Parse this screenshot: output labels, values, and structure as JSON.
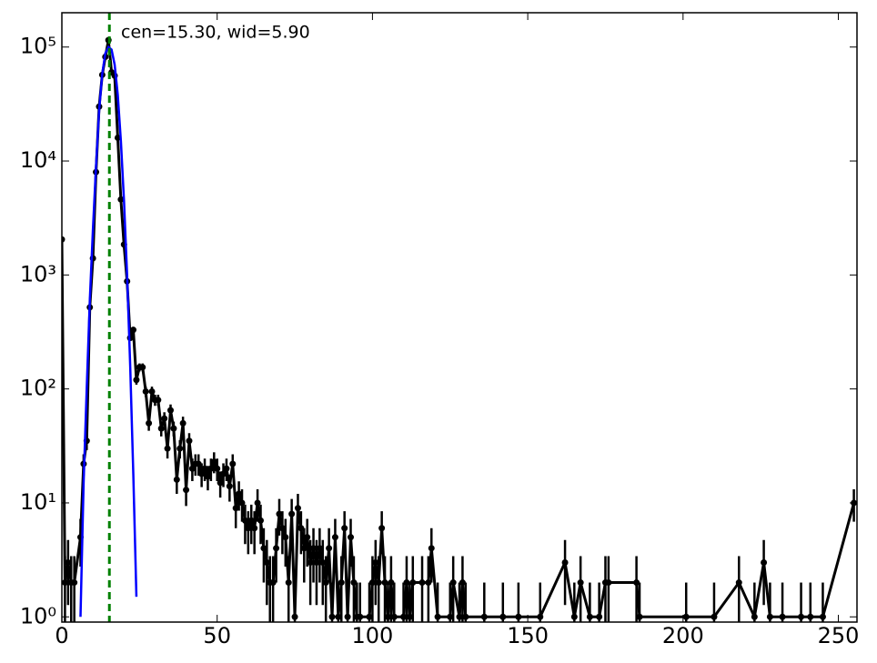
{
  "chart_data": {
    "type": "errorbar_line",
    "annotation": "cen=15.30, wid=5.90",
    "annotation_color": "#008000",
    "vline": 15.3,
    "vline_color": "#008000",
    "xlim": [
      0,
      256
    ],
    "xticks": [
      0,
      50,
      100,
      150,
      200,
      250
    ],
    "ylim": [
      0.9,
      200000
    ],
    "log_y": true,
    "yticks": [
      {
        "value": 1,
        "label": "10⁰"
      },
      {
        "value": 10,
        "label": "10¹"
      },
      {
        "value": 100,
        "label": "10²"
      },
      {
        "value": 1000,
        "label": "10³"
      },
      {
        "value": 10000,
        "label": "10⁴"
      },
      {
        "value": 100000,
        "label": "10⁵"
      }
    ],
    "series": [
      {
        "color": "#000000",
        "x": [
          0,
          1,
          2,
          3,
          4,
          6,
          7,
          8,
          9,
          10,
          11,
          12,
          13,
          14,
          15,
          16,
          17,
          18,
          19,
          20,
          21,
          22,
          23,
          24,
          25,
          26,
          27,
          28,
          29,
          30,
          31,
          32,
          33,
          34,
          35,
          36,
          37,
          38,
          39,
          40,
          41,
          42,
          43,
          44,
          45,
          46,
          47,
          48,
          49,
          50,
          51,
          52,
          53,
          54,
          55,
          56,
          57,
          58,
          59,
          60,
          61,
          62,
          63,
          64,
          65,
          66,
          67,
          68,
          69,
          70,
          71,
          72,
          73,
          74,
          75,
          76,
          77,
          78,
          79,
          80,
          81,
          82,
          83,
          84,
          85,
          86,
          87,
          88,
          89,
          90,
          91,
          92,
          93,
          94,
          95,
          96,
          99,
          100,
          101,
          102,
          103,
          104,
          105,
          106,
          107,
          110,
          111,
          112,
          113,
          116,
          118,
          119,
          121,
          125,
          126,
          128,
          129,
          130,
          136,
          142,
          147,
          154,
          162,
          165,
          167,
          170,
          173,
          175,
          176,
          185,
          186,
          201,
          210,
          218,
          223,
          226,
          228,
          232,
          238,
          241,
          245,
          255
        ],
        "values": [
          2050,
          2,
          3,
          2,
          2,
          5,
          22,
          35,
          520,
          1400,
          8000,
          30000,
          57000,
          82000,
          115000,
          60000,
          56000,
          16000,
          4600,
          1850,
          880,
          280,
          330,
          120,
          155,
          155,
          95,
          50,
          95,
          80,
          80,
          45,
          55,
          30,
          65,
          45,
          16,
          30,
          50,
          13,
          35,
          20,
          22,
          22,
          18,
          20,
          17,
          20,
          23,
          20,
          15,
          18,
          20,
          14,
          22,
          9,
          12,
          10,
          7,
          6,
          7,
          6,
          10,
          7,
          4,
          3,
          2,
          2,
          4,
          8,
          6,
          5,
          2,
          8,
          1,
          9,
          6,
          4,
          5,
          3,
          4,
          3,
          4,
          3,
          2,
          4,
          1,
          5,
          1,
          2,
          6,
          1,
          5,
          2,
          1,
          1,
          1,
          2,
          3,
          2,
          6,
          2,
          1,
          2,
          1,
          1,
          2,
          1,
          2,
          2,
          2,
          4,
          1,
          1,
          2,
          1,
          2,
          1,
          1,
          1,
          1,
          1,
          3,
          1,
          2,
          1,
          1,
          2,
          2,
          2,
          1,
          1,
          1,
          2,
          1,
          3,
          1,
          1,
          1,
          1,
          1,
          10
        ],
        "errors": [
          45.3,
          1.41,
          1.73,
          1.41,
          1.41,
          2.24,
          4.69,
          5.92,
          22.8,
          37.4,
          89.4,
          173,
          239,
          286,
          339,
          245,
          237,
          126,
          67.8,
          43,
          29.7,
          16.7,
          18.2,
          11,
          12.4,
          12.4,
          9.75,
          7.07,
          9.75,
          8.94,
          8.94,
          6.71,
          7.42,
          5.48,
          8.06,
          6.71,
          4,
          5.48,
          7.07,
          3.61,
          5.92,
          4.47,
          4.69,
          4.69,
          4.24,
          4.47,
          4.12,
          4.47,
          4.8,
          4.47,
          3.87,
          4.24,
          4.47,
          3.74,
          4.69,
          3,
          3.46,
          3.16,
          2.65,
          2.45,
          2.65,
          2.45,
          3.16,
          2.65,
          2,
          1.73,
          1.41,
          1.41,
          2,
          2.83,
          2.45,
          2.24,
          1.41,
          2.83,
          1,
          3,
          2.45,
          2,
          2.24,
          1.73,
          2,
          1.73,
          2,
          1.73,
          1.41,
          2,
          1,
          2.24,
          1,
          1.41,
          2.45,
          1,
          2.24,
          1.41,
          1,
          1,
          1,
          1.41,
          1.73,
          1.41,
          2.45,
          1.41,
          1,
          1.41,
          1,
          1,
          1.41,
          1,
          1.41,
          1.41,
          1.41,
          2,
          1,
          1,
          1.41,
          1,
          1.41,
          1,
          1,
          1,
          1,
          1,
          1.73,
          1,
          1.41,
          1,
          1,
          1.41,
          1.41,
          1.41,
          1,
          1,
          1,
          1.41,
          1,
          1.73,
          1,
          1,
          1,
          1,
          1,
          3.16
        ]
      },
      {
        "color": "#0000ff",
        "x": [
          6,
          7,
          8,
          9,
          10,
          11,
          12,
          13,
          14,
          15,
          16,
          17,
          18,
          19,
          20,
          21,
          22,
          23,
          24
        ],
        "values": [
          1,
          15,
          100,
          600,
          2500,
          9000,
          28000,
          58000,
          88000,
          100000,
          95000,
          70000,
          38000,
          15000,
          4500,
          1000,
          160,
          18,
          1.5
        ]
      }
    ]
  }
}
